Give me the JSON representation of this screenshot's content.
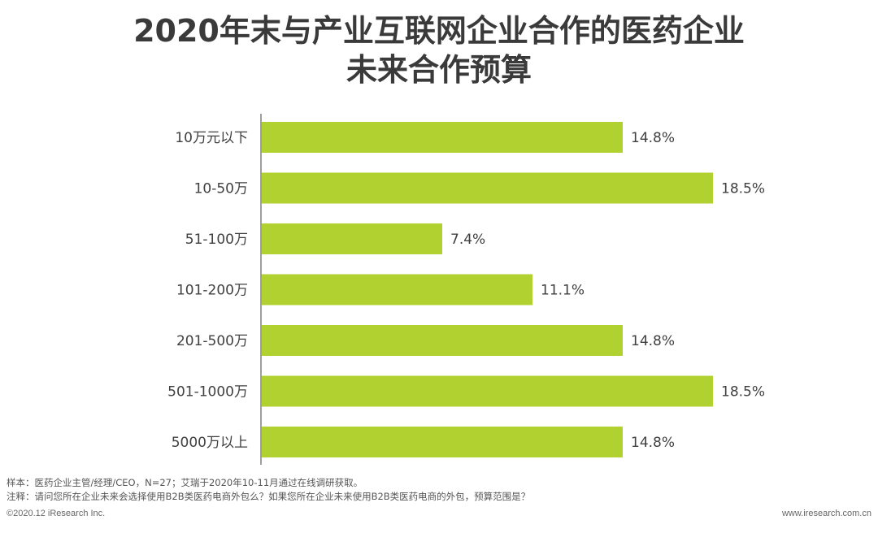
{
  "header": {
    "title_line1": "2020年末与产业互联网企业合作的医药企业",
    "title_line2": "未来合作预算"
  },
  "chart_data": {
    "type": "bar",
    "orientation": "horizontal",
    "title": "2020年末与产业互联网企业合作的医药企业 未来合作预算",
    "categories": [
      "10万元以下",
      "10-50万",
      "51-100万",
      "101-200万",
      "201-500万",
      "501-1000万",
      "5000万以上"
    ],
    "values": [
      14.8,
      18.5,
      7.4,
      11.1,
      14.8,
      18.5,
      14.8
    ],
    "value_labels": [
      "14.8%",
      "18.5%",
      "7.4%",
      "11.1%",
      "14.8%",
      "18.5%",
      "14.8%"
    ],
    "unit": "%",
    "xlim": [
      0,
      20
    ],
    "grid": false,
    "bar_color": "#b1d130"
  },
  "notes": {
    "sample": "样本：医药企业主管/经理/CEO，N=27；艾瑞于2020年10-11月通过在线调研获取。",
    "remark": "注释：请问您所在企业未来会选择使用B2B类医药电商外包么？如果您所在企业未来使用B2B类医药电商的外包，预算范围是？"
  },
  "footer": {
    "copyright": "©2020.12 iResearch Inc.",
    "website": "www.iresearch.com.cn"
  }
}
